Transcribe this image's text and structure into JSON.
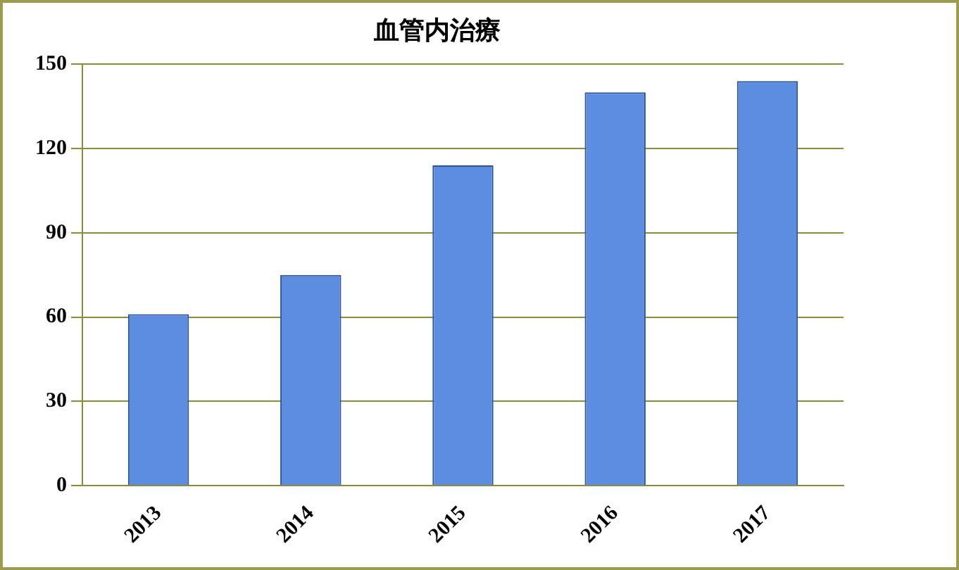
{
  "chart_data": {
    "type": "bar",
    "title": "血管内治療",
    "categories": [
      "2013",
      "2014",
      "2015",
      "2016",
      "2017"
    ],
    "values": [
      61,
      75,
      114,
      140,
      144
    ],
    "color": "#5b8de0",
    "ylim": [
      0,
      150
    ],
    "yticks": [
      0,
      30,
      60,
      90,
      120,
      150
    ],
    "grid": "y",
    "legend": false
  }
}
